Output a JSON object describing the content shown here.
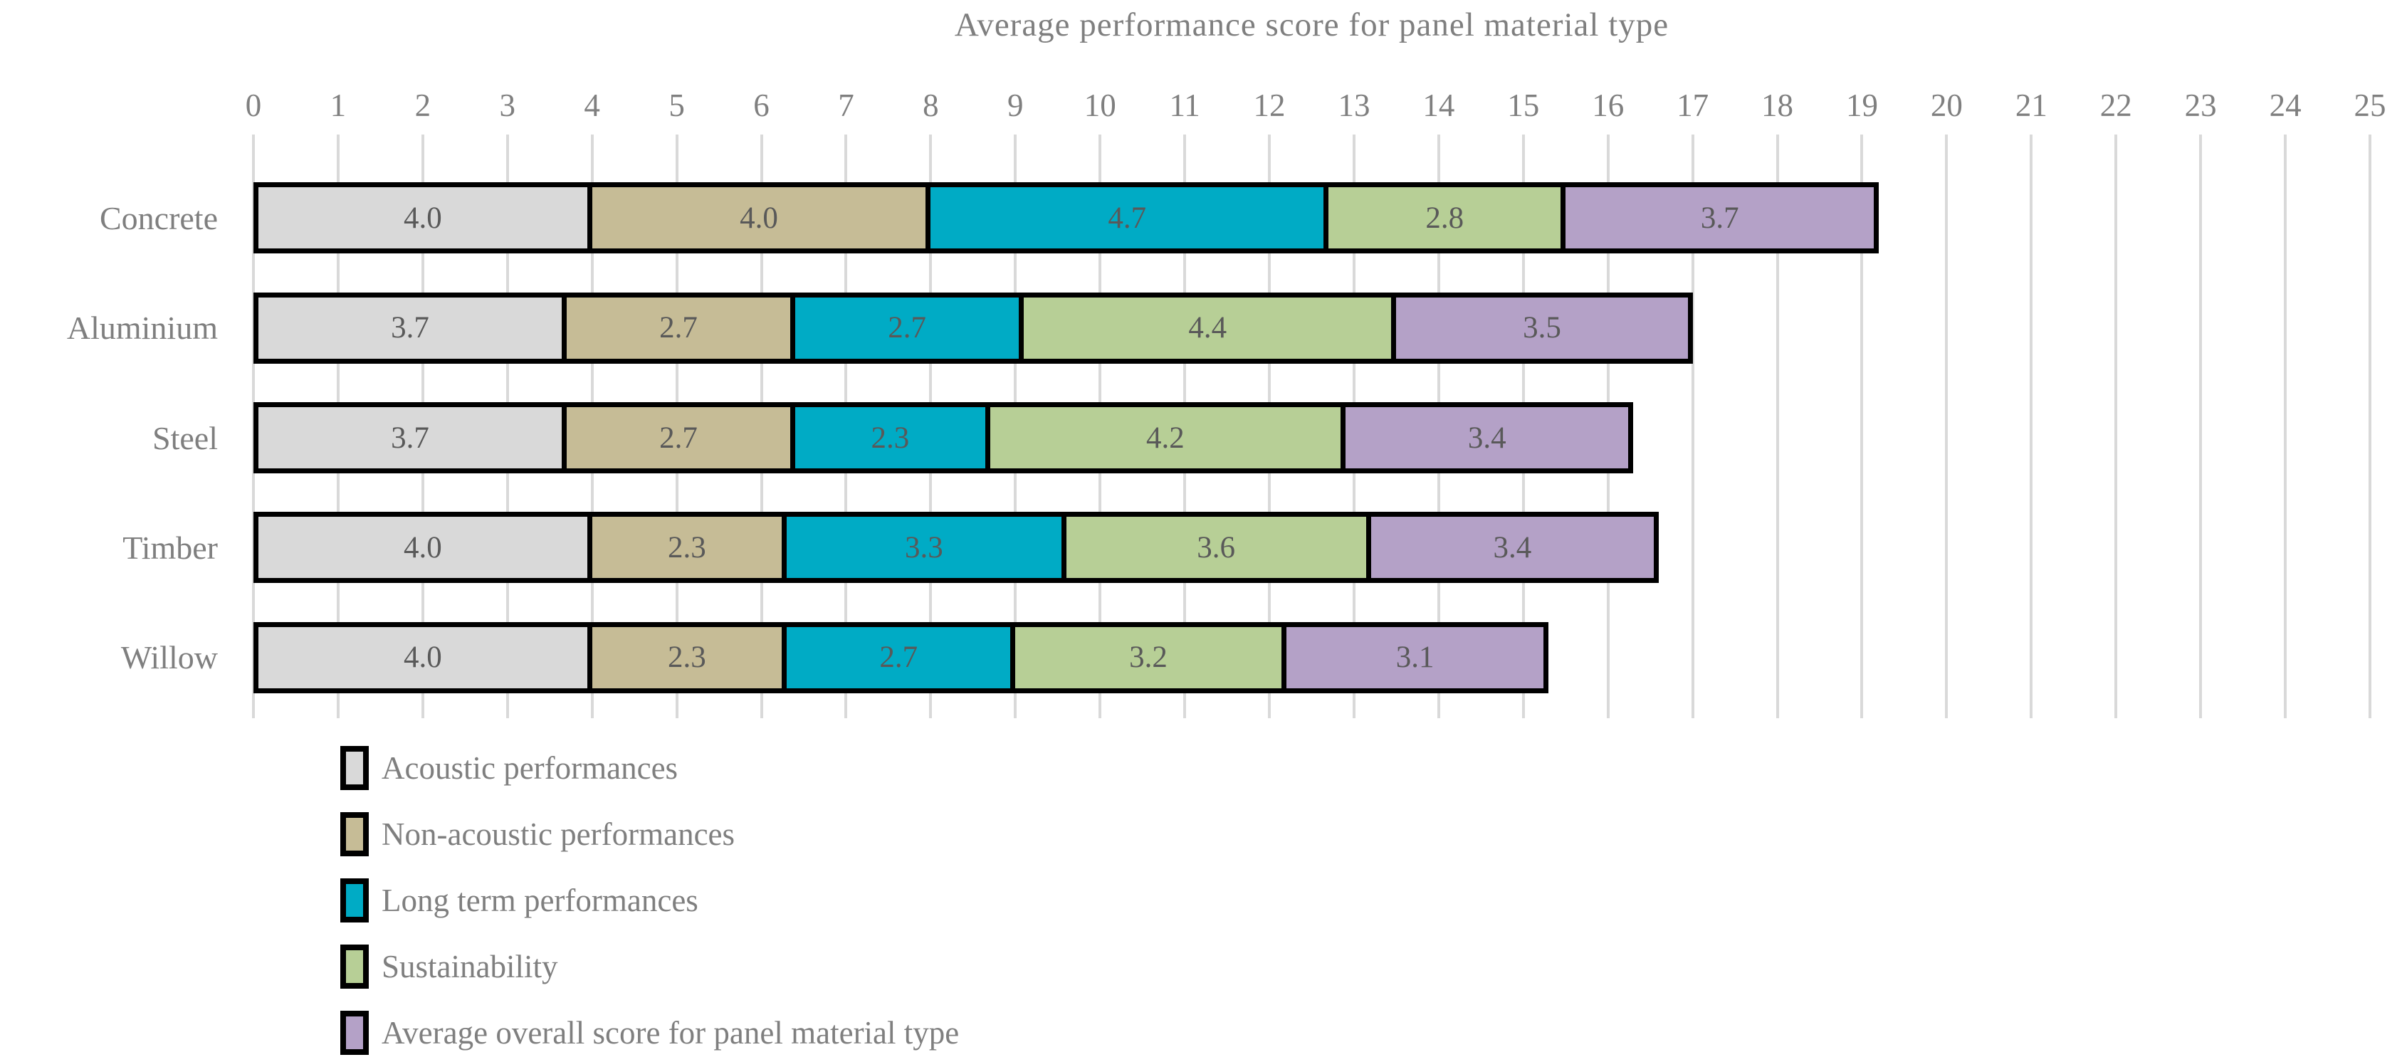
{
  "chart_data": {
    "type": "bar",
    "orientation": "horizontal",
    "stacked": true,
    "title": "Average performance score for panel material type",
    "categories": [
      "Concrete",
      "Aluminium",
      "Steel",
      "Timber",
      "Willow"
    ],
    "series": [
      {
        "name": "Acoustic performances",
        "color": "#d9d9d9",
        "values": [
          4.0,
          3.7,
          3.7,
          4.0,
          4.0
        ],
        "labels": [
          "4.0",
          "3.7",
          "3.7",
          "4.0",
          "4.0"
        ]
      },
      {
        "name": "Non-acoustic performances",
        "color": "#c6bc96",
        "values": [
          4.0,
          2.7,
          2.7,
          2.3,
          2.3
        ],
        "labels": [
          "4.0",
          "2.7",
          "2.7",
          "2.3",
          "2.3"
        ]
      },
      {
        "name": "Long term performances",
        "color": "#00abc5",
        "values": [
          4.7,
          2.7,
          2.3,
          3.3,
          2.7
        ],
        "labels": [
          "4.7",
          "2.7",
          "2.3",
          "3.3",
          "2.7"
        ]
      },
      {
        "name": "Sustainability",
        "color": "#b7cf96",
        "values": [
          2.8,
          4.4,
          4.2,
          3.6,
          3.2
        ],
        "labels": [
          "2.8",
          "4.4",
          "4.2",
          "3.6",
          "3.2"
        ]
      },
      {
        "name": "Average overall score for panel material type",
        "color": "#b4a1c7",
        "values": [
          3.7,
          3.5,
          3.4,
          3.4,
          3.1
        ],
        "labels": [
          "3.7",
          "3.5",
          "3.4",
          "3.4",
          "3.1"
        ]
      }
    ],
    "totals": [
      19.2,
      17.0,
      16.3,
      16.6,
      15.3
    ],
    "x_axis": {
      "min": 0,
      "max": 25,
      "tick_step": 1,
      "tick_labels": [
        "0",
        "1",
        "2",
        "3",
        "4",
        "5",
        "6",
        "7",
        "8",
        "9",
        "10",
        "11",
        "12",
        "13",
        "14",
        "15",
        "16",
        "17",
        "18",
        "19",
        "20",
        "21",
        "22",
        "23",
        "24",
        "25"
      ]
    },
    "grid": true,
    "legend_position": "bottom-left",
    "segment_border_color": "#000000",
    "gridline_color": "#d9d9d9",
    "value_label_color": "#595959",
    "axis_text_color": "#7f7f7f"
  }
}
